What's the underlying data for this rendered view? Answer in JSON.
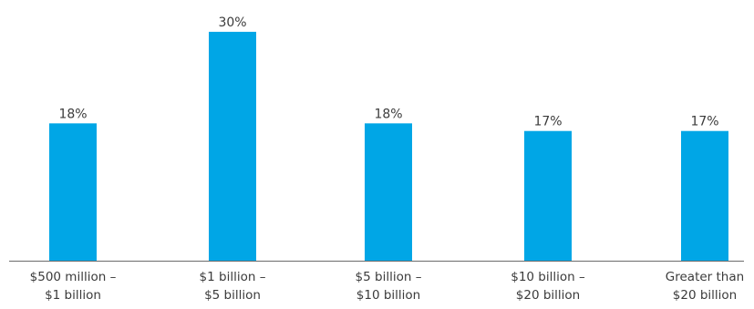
{
  "chart_data": {
    "type": "bar",
    "categories": [
      [
        "$500 million –",
        "$1 billion"
      ],
      [
        "$1 billion –",
        "$5 billion"
      ],
      [
        "$5 billion –",
        "$10 billion"
      ],
      [
        "$10 billion –",
        "$20 billion"
      ],
      [
        "Greater than",
        "$20 billion"
      ]
    ],
    "values": [
      18,
      30,
      18,
      17,
      17
    ],
    "value_labels": [
      "18%",
      "30%",
      "18%",
      "17%",
      "17%"
    ],
    "title": "",
    "xlabel": "",
    "ylabel": "",
    "ylim": [
      0,
      30
    ],
    "grid": false,
    "legend": "none",
    "colors": {
      "bar": "#00a6e6",
      "text": "#3b3b3b",
      "axis": "#6b6b6b"
    }
  }
}
